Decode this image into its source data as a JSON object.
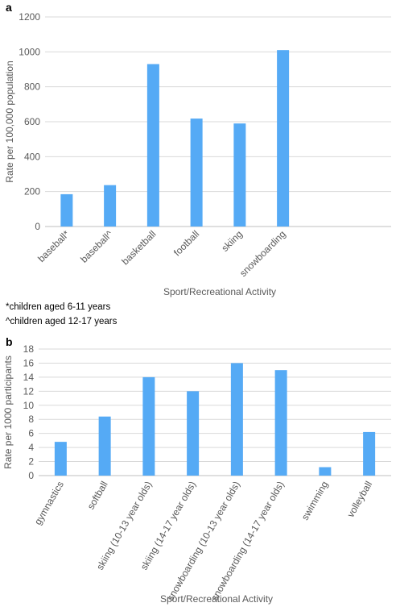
{
  "panels": [
    "a",
    "b"
  ],
  "notes": [
    "*children aged 6-11 years",
    "^children aged 12-17 years"
  ],
  "chart_data": [
    {
      "type": "bar",
      "panel": "a",
      "categories": [
        "baseball*",
        "baseball^",
        "basketball",
        "football",
        "skiing",
        "snowboarding"
      ],
      "values": [
        185,
        237,
        930,
        618,
        590,
        1010
      ],
      "xlabel": "Sport/Recreational Activity",
      "ylabel": "Rate per 100,000 population",
      "ylim": [
        0,
        1200
      ],
      "yticks": [
        0,
        200,
        400,
        600,
        800,
        1000,
        1200
      ],
      "grid": true,
      "color": "#55aaf5"
    },
    {
      "type": "bar",
      "panel": "b",
      "categories": [
        "gymnastics",
        "softball",
        "skiing (10-13 year olds)",
        "skiing (14-17 year olds)",
        "snowboarding (10-13 year olds)",
        "snowboarding (14-17 year olds)",
        "swimming",
        "volleyball"
      ],
      "values": [
        4.8,
        8.4,
        14,
        12,
        16,
        15,
        1.2,
        6.2
      ],
      "xlabel": "Sport/Recreational Activity",
      "ylabel": "Rate per 1000 participants",
      "ylim": [
        0,
        18
      ],
      "yticks": [
        0,
        2,
        4,
        6,
        8,
        10,
        12,
        14,
        16,
        18
      ],
      "grid": true,
      "color": "#55aaf5"
    }
  ]
}
